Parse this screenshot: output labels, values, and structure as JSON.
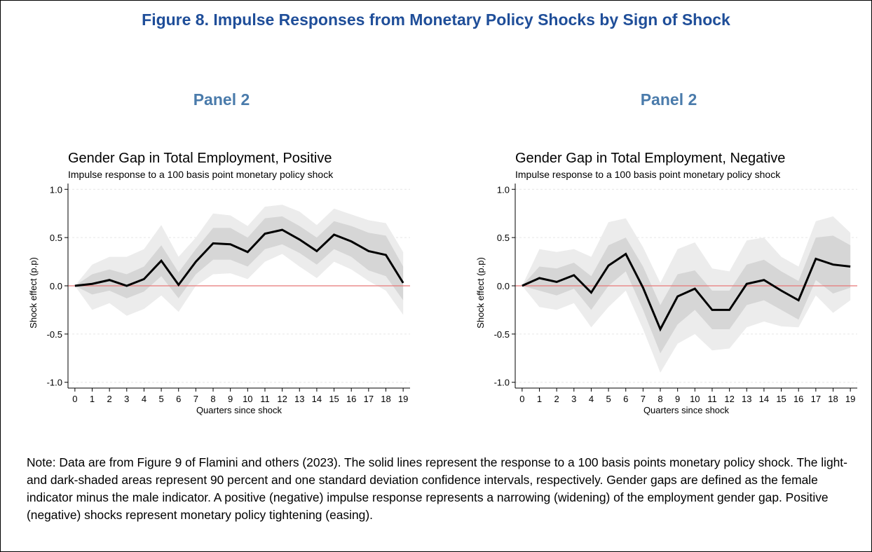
{
  "title": "Figure 8. Impulse Responses from Monetary Policy Shocks by Sign of Shock",
  "note": "Note: Data are from Figure 9 of Flamini and others (2023). The solid lines represent the response to a 100 basis points monetary policy shock. The light- and dark-shaded areas represent 90 percent and one standard deviation confidence intervals, respectively. Gender gaps are defined as the female indicator minus the male indicator. A positive (negative) impulse response represents a narrowing (widening) of the employment gender gap. Positive (negative) shocks represent monetary policy tightening (easing).",
  "chart_data": [
    {
      "type": "line",
      "panel": "Panel 2",
      "title": "Gender Gap in Total Employment, Positive",
      "subtitle": "Impulse response to a 100 basis point monetary policy shock",
      "xlabel": "Quarters since shock",
      "ylabel": "Shock effect (p.p)",
      "x": [
        0,
        1,
        2,
        3,
        4,
        5,
        6,
        7,
        8,
        9,
        10,
        11,
        12,
        13,
        14,
        15,
        16,
        17,
        18,
        19
      ],
      "xlim": [
        -0.4,
        19.4
      ],
      "ylim": [
        -1.06,
        1.06
      ],
      "xticks": [
        0,
        1,
        2,
        3,
        4,
        5,
        6,
        7,
        8,
        9,
        10,
        11,
        12,
        13,
        14,
        15,
        16,
        17,
        18,
        19
      ],
      "yticks": [
        {
          "value": -1,
          "label": "-1.0"
        },
        {
          "value": -0.5,
          "label": "-0.5"
        },
        {
          "value": 0,
          "label": "0.0"
        },
        {
          "value": 0.5,
          "label": "0.5"
        },
        {
          "value": 1,
          "label": "1.0"
        }
      ],
      "grid": true,
      "reference_line": {
        "value": 0,
        "color": "#e87878"
      },
      "bands": [
        {
          "color": "#ececec",
          "lower": [
            0,
            -0.25,
            -0.18,
            -0.31,
            -0.24,
            -0.1,
            -0.27,
            0.0,
            0.12,
            0.13,
            0.07,
            0.25,
            0.33,
            0.2,
            0.08,
            0.25,
            0.17,
            0.05,
            -0.05,
            -0.3
          ],
          "upper": [
            0,
            0.22,
            0.3,
            0.3,
            0.38,
            0.63,
            0.3,
            0.5,
            0.75,
            0.73,
            0.62,
            0.82,
            0.84,
            0.77,
            0.63,
            0.8,
            0.74,
            0.68,
            0.65,
            0.35
          ]
        },
        {
          "color": "#d6d6d6",
          "lower": [
            0,
            -0.09,
            -0.05,
            -0.13,
            -0.06,
            0.1,
            -0.13,
            0.12,
            0.27,
            0.27,
            0.2,
            0.38,
            0.43,
            0.34,
            0.22,
            0.38,
            0.3,
            0.16,
            0.1,
            -0.15
          ],
          "upper": [
            0,
            0.12,
            0.17,
            0.12,
            0.2,
            0.42,
            0.14,
            0.38,
            0.6,
            0.6,
            0.5,
            0.7,
            0.72,
            0.62,
            0.5,
            0.67,
            0.62,
            0.55,
            0.52,
            0.2
          ]
        }
      ],
      "series": [
        {
          "color": "#000000",
          "values": [
            0,
            0.02,
            0.06,
            0.0,
            0.07,
            0.26,
            0.01,
            0.25,
            0.44,
            0.43,
            0.35,
            0.54,
            0.58,
            0.48,
            0.36,
            0.53,
            0.46,
            0.36,
            0.32,
            0.03
          ]
        }
      ]
    },
    {
      "type": "line",
      "panel": "Panel 2",
      "title": "Gender Gap in Total Employment, Negative",
      "subtitle": "Impulse response to a 100 basis point monetary policy shock",
      "xlabel": "Quarters since shock",
      "ylabel": "Shock effect (p.p)",
      "x": [
        0,
        1,
        2,
        3,
        4,
        5,
        6,
        7,
        8,
        9,
        10,
        11,
        12,
        13,
        14,
        15,
        16,
        17,
        18,
        19
      ],
      "xlim": [
        -0.4,
        19.4
      ],
      "ylim": [
        -1.06,
        1.06
      ],
      "xticks": [
        0,
        1,
        2,
        3,
        4,
        5,
        6,
        7,
        8,
        9,
        10,
        11,
        12,
        13,
        14,
        15,
        16,
        17,
        18,
        19
      ],
      "yticks": [
        {
          "value": -1,
          "label": "-1.0"
        },
        {
          "value": -0.5,
          "label": "-0.5"
        },
        {
          "value": 0,
          "label": "0.0"
        },
        {
          "value": 0.5,
          "label": "0.5"
        },
        {
          "value": 1,
          "label": "1.0"
        }
      ],
      "grid": true,
      "reference_line": {
        "value": 0,
        "color": "#e87878"
      },
      "bands": [
        {
          "color": "#ececec",
          "lower": [
            0,
            -0.22,
            -0.25,
            -0.18,
            -0.43,
            -0.22,
            -0.05,
            -0.45,
            -0.9,
            -0.6,
            -0.5,
            -0.67,
            -0.65,
            -0.43,
            -0.37,
            -0.42,
            -0.43,
            -0.1,
            -0.28,
            -0.15
          ],
          "upper": [
            0,
            0.38,
            0.35,
            0.38,
            0.3,
            0.66,
            0.7,
            0.4,
            0.03,
            0.38,
            0.45,
            0.18,
            0.15,
            0.47,
            0.5,
            0.3,
            0.2,
            0.67,
            0.72,
            0.55
          ]
        },
        {
          "color": "#d6d6d6",
          "lower": [
            0,
            -0.05,
            -0.1,
            -0.03,
            -0.25,
            0.0,
            0.15,
            -0.25,
            -0.7,
            -0.4,
            -0.25,
            -0.45,
            -0.45,
            -0.2,
            -0.15,
            -0.25,
            -0.35,
            0.06,
            -0.08,
            -0.02
          ],
          "upper": [
            0,
            0.2,
            0.18,
            0.24,
            0.1,
            0.42,
            0.5,
            0.2,
            -0.2,
            0.12,
            0.16,
            -0.05,
            -0.05,
            0.22,
            0.27,
            0.15,
            0.05,
            0.5,
            0.52,
            0.42
          ]
        }
      ],
      "series": [
        {
          "color": "#000000",
          "values": [
            0,
            0.08,
            0.04,
            0.11,
            -0.07,
            0.21,
            0.33,
            -0.02,
            -0.45,
            -0.11,
            -0.03,
            -0.25,
            -0.25,
            0.02,
            0.06,
            -0.05,
            -0.15,
            0.28,
            0.22,
            0.2
          ]
        }
      ]
    }
  ]
}
